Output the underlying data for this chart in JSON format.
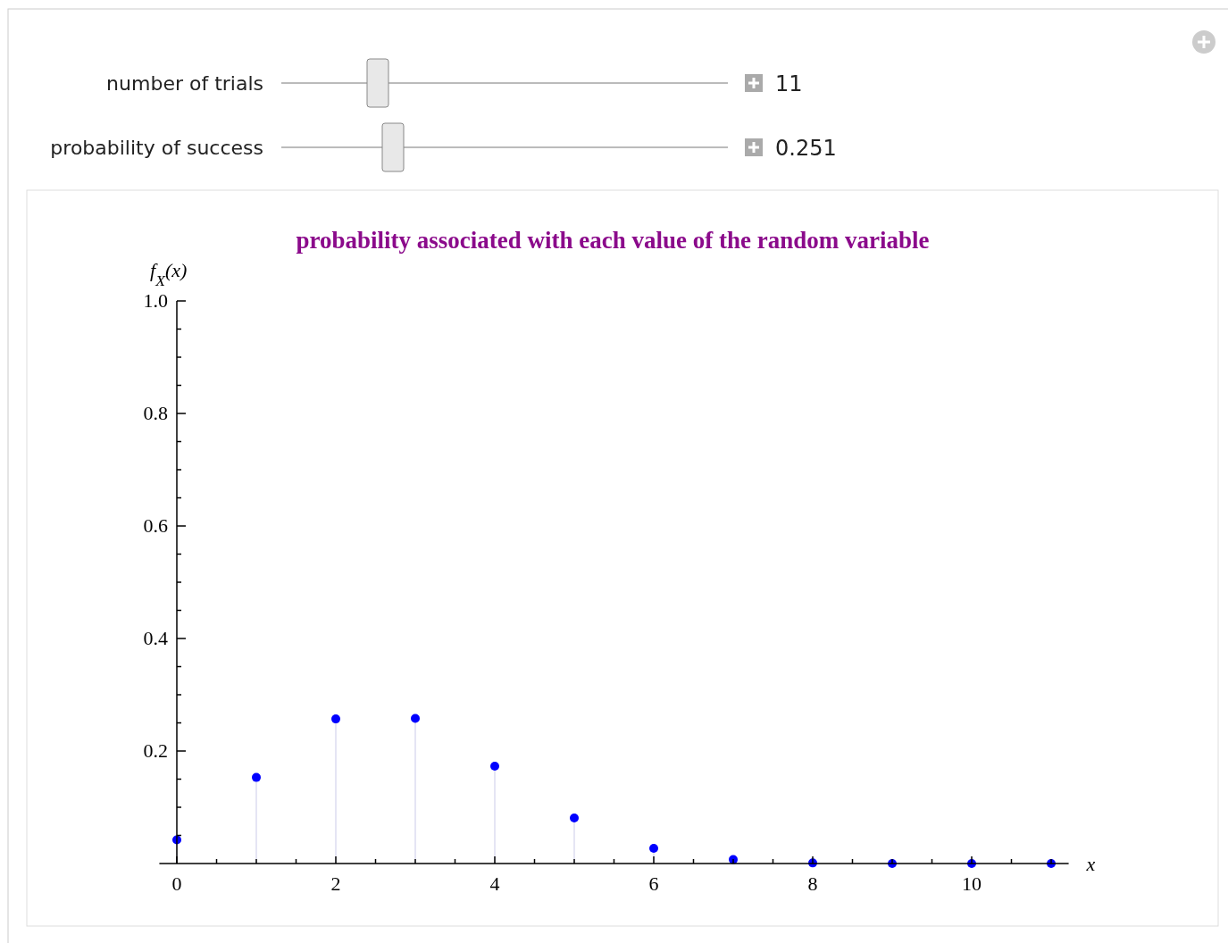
{
  "chart_data": {
    "type": "lollipop",
    "title": "probability associated with each value of the random variable",
    "xlabel": "x",
    "ylabel": "f$_{X}$(x)",
    "x": [
      0,
      1,
      2,
      3,
      4,
      5,
      6,
      7,
      8,
      9,
      10,
      11
    ],
    "series": [
      {
        "color": "#0000ff",
        "values": [
          0.042,
          0.153,
          0.257,
          0.258,
          0.173,
          0.081,
          0.027,
          0.007,
          0.001,
          0,
          0,
          0
        ]
      }
    ],
    "marker": "circle",
    "xlim": [
      -0.22,
      11.22
    ],
    "ylim": [
      0,
      1
    ],
    "xticks": [
      0,
      {
        "value": 0.5,
        "label": null
      },
      {
        "value": 1,
        "label": null
      },
      {
        "value": 1.5,
        "label": null
      },
      2,
      {
        "value": 2.5,
        "label": null
      },
      {
        "value": 3,
        "label": null
      },
      {
        "value": 3.5,
        "label": null
      },
      4,
      {
        "value": 4.5,
        "label": null
      },
      {
        "value": 5,
        "label": null
      },
      {
        "value": 5.5,
        "label": null
      },
      6,
      {
        "value": 6.5,
        "label": null
      },
      {
        "value": 7,
        "label": null
      },
      {
        "value": 7.5,
        "label": null
      },
      8,
      {
        "value": 8.5,
        "label": null
      },
      {
        "value": 9,
        "label": null
      },
      {
        "value": 9.5,
        "label": null
      },
      10,
      {
        "value": 10.5,
        "label": null
      },
      {
        "value": 11,
        "label": null
      }
    ],
    "yticks": [
      {
        "value": 0.05,
        "label": null
      },
      {
        "value": 0.1,
        "label": null
      },
      {
        "value": 0.15,
        "label": null
      },
      {
        "value": 0.2,
        "label": "0.2"
      },
      {
        "value": 0.25,
        "label": null
      },
      {
        "value": 0.3,
        "label": null
      },
      {
        "value": 0.35,
        "label": null
      },
      {
        "value": 0.4,
        "label": "0.4"
      },
      {
        "value": 0.45,
        "label": null
      },
      {
        "value": 0.5,
        "label": null
      },
      {
        "value": 0.55,
        "label": null
      },
      {
        "value": 0.6,
        "label": "0.6"
      },
      {
        "value": 0.65,
        "label": null
      },
      {
        "value": 0.7,
        "label": null
      },
      {
        "value": 0.75,
        "label": null
      },
      {
        "value": 0.8,
        "label": "0.8"
      },
      {
        "value": 0.85,
        "label": null
      },
      {
        "value": 0.9,
        "label": null
      },
      {
        "value": 0.95,
        "label": null
      },
      {
        "value": 1,
        "label": "1.0"
      }
    ],
    "annotations": [
      "number of trials",
      "11",
      "probability of success",
      "0.251"
    ]
  }
}
